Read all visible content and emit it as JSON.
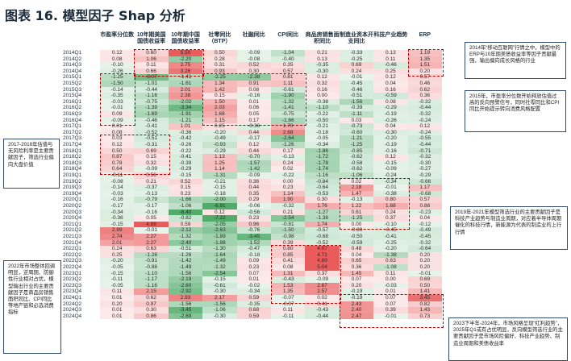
{
  "title": "图表 16. 模型因子 Shap 分析",
  "columns": [
    "市盈率分位数",
    "10年期美国国债收益率",
    "10年期中国国债收益率",
    "社零同比（BTP）",
    "社融同比",
    "CPI同比",
    "商品房销售面积同比",
    "制造业资本开支同比",
    "科技产业趋势",
    "ERP"
  ],
  "rows": [
    {
      "label": "2014Q1",
      "values": [
        0.12,
        0.6,
        5.5,
        0.5,
        -0.09,
        -1.04,
        0.21,
        -0.33,
        0.13,
        1.19
      ]
    },
    {
      "label": "2014Q2",
      "values": [
        0.08,
        1.06,
        -2.2,
        0.28,
        -0.08,
        -0.4,
        0.13,
        -0.25,
        0.11,
        1.35
      ]
    },
    {
      "label": "2014Q3",
      "values": [
        -0.1,
        0.11,
        2.75,
        0.31,
        0.52,
        0.35,
        -0.35,
        0.69,
        -0.46,
        1.51
      ]
    },
    {
      "label": "2014Q4",
      "values": [
        -0.26,
        0.66,
        3.26,
        0.93,
        0.3,
        0.57,
        -0.3,
        0.24,
        0.25,
        0.2
      ]
    },
    {
      "label": "2015Q1",
      "values": [
        -1.25,
        -3.07,
        -1.41,
        -2.25,
        -2.38,
        0.81,
        0.12,
        -0.01,
        0.12,
        0.57
      ]
    },
    {
      "label": "2015Q2",
      "values": [
        -1.5,
        -1.01,
        -1.61,
        1.34,
        0.91,
        1.11,
        0.32,
        -0.45,
        0.04,
        0.46
      ]
    },
    {
      "label": "2015Q3",
      "values": [
        -0.14,
        -0.44,
        2.01,
        1.42,
        0.08,
        -0.61,
        0.16,
        -0.46,
        0.16,
        0.62
      ]
    },
    {
      "label": "2015Q4",
      "values": [
        -0.35,
        -1.16,
        2.38,
        0.15,
        -0.16,
        -1.9,
        0.0,
        -0.51,
        -0.59,
        0.36
      ]
    },
    {
      "label": "2016Q1",
      "values": [
        -0.03,
        -0.75,
        -2.02,
        1.5,
        0.01,
        -1.32,
        -0.38,
        -1.56,
        0.08,
        -0.32
      ]
    },
    {
      "label": "2016Q2",
      "values": [
        -0.01,
        -1.39,
        -3.34,
        2.03,
        0.06,
        -1.41,
        -1.1,
        -0.39,
        -0.29,
        -0.44
      ]
    },
    {
      "label": "2016Q3",
      "values": [
        0.09,
        -1.69,
        -1.91,
        1.68,
        0.05,
        -0.75,
        -0.22,
        -1.11,
        -0.19,
        -0.32
      ]
    },
    {
      "label": "2016Q4",
      "values": [
        -0.09,
        -0.46,
        -1.21,
        1.15,
        0.17,
        -1.66,
        -0.5,
        0.03,
        -0.26,
        -0.24
      ]
    },
    {
      "label": "2017Q1",
      "values": [
        0.01,
        -0.41,
        1.01,
        0.25,
        -0.36,
        1.7,
        -0.21,
        -0.73,
        0.04,
        0.12
      ]
    },
    {
      "label": "2017Q2",
      "values": [
        0.08,
        -0.52,
        -0.36,
        -0.2,
        0.44,
        2.68,
        -0.18,
        -0.6,
        -0.3,
        -0.24
      ]
    },
    {
      "label": "2017Q3",
      "values": [
        0.03,
        -0.51,
        -0.42,
        -0.49,
        -0.17,
        -2.64,
        -0.05,
        -1.21,
        -0.2,
        -0.55
      ]
    },
    {
      "label": "2017Q4",
      "values": [
        0.12,
        -0.31,
        -0.26,
        -0.93,
        0.12,
        -1.26,
        -0.34,
        -1.25,
        -0.19,
        -0.44
      ]
    },
    {
      "label": "2018Q1",
      "values": [
        0.5,
        0.69,
        -0.22,
        -0.29,
        0.44,
        0.17,
        -1.86,
        -0.85,
        -0.16,
        -0.71
      ]
    },
    {
      "label": "2018Q2",
      "values": [
        0.87,
        0.15,
        -0.41,
        1.13,
        -0.7,
        -0.13,
        -1.72,
        -0.62,
        0.12,
        -0.32
      ]
    },
    {
      "label": "2018Q3",
      "values": [
        0.78,
        0.32,
        -0.39,
        1.25,
        -1.57,
        0.24,
        -1.78,
        -0.58,
        -0.15,
        -0.3
      ]
    },
    {
      "label": "2018Q4",
      "values": [
        0.64,
        -0.09,
        -0.29,
        1.14,
        -1.42,
        0.02,
        -1.74,
        -0.62,
        -0.09,
        -0.27
      ]
    },
    {
      "label": "2019Q1",
      "values": [
        -0.11,
        0.56,
        -0.15,
        -1.31,
        -0.09,
        -0.22,
        -1.16,
        -1.06,
        -0.24,
        -0.29
      ]
    },
    {
      "label": "2019Q2",
      "values": [
        -0.08,
        0.21,
        0.52,
        -0.21,
        0.36,
        0.0,
        -0.84,
        0.02,
        -0.34,
        -0.66
      ]
    },
    {
      "label": "2019Q3",
      "values": [
        -0.14,
        -0.37,
        0.15,
        -0.15,
        0.44,
        0.23,
        -0.64,
        2.18,
        -0.01,
        1.17
      ]
    },
    {
      "label": "2019Q4",
      "values": [
        -0.03,
        -0.13,
        0.23,
        -0.18,
        0.35,
        1.14,
        -0.53,
        1.47,
        -0.38,
        -0.68
      ]
    },
    {
      "label": "2020Q1",
      "values": [
        -0.16,
        -0.79,
        -1.66,
        -2.0,
        0.29,
        1.9,
        0.3,
        -0.13,
        0.8,
        0.57
      ]
    },
    {
      "label": "2020Q2",
      "values": [
        -0.17,
        -0.17,
        -1.06,
        -6.91,
        -0.06,
        -0.32,
        1.76,
        1.22,
        1.68,
        0.88
      ]
    },
    {
      "label": "2020Q3",
      "values": [
        -0.34,
        -0.16,
        -6.4,
        0.12,
        -0.56,
        0.21,
        -1.27,
        0.61,
        0.24,
        -0.23
      ]
    },
    {
      "label": "2020Q4",
      "values": [
        -0.36,
        0.05,
        -0.82,
        -7.22,
        0.23,
        -2.54,
        -1.38,
        -1.25,
        0.37,
        0.04
      ]
    },
    {
      "label": "2021Q1",
      "values": [
        -0.15,
        4.88,
        0.59,
        -2.05,
        0.96,
        -0.81,
        1.74,
        0.0,
        -0.1,
        -0.12
      ]
    },
    {
      "label": "2021Q2",
      "values": [
        2.99,
        -0.01,
        -2.12,
        -2.63,
        -0.76,
        -1.5,
        -0.57,
        -0.3,
        -0.45,
        -0.49
      ]
    },
    {
      "label": "2021Q3",
      "values": [
        2.74,
        2.27,
        -1.32,
        -1.89,
        -3.45,
        -0.98,
        -0.68,
        -0.5,
        -0.41,
        -0.45
      ]
    },
    {
      "label": "2021Q4",
      "values": [
        2.01,
        2.27,
        -2.4,
        -1.88,
        -1.52,
        0.39,
        -0.52,
        -0.59,
        -0.25,
        -0.32
      ]
    },
    {
      "label": "2022Q1",
      "values": [
        0.24,
        0.63,
        -0.51,
        -1.3,
        -0.47,
        0.8,
        4.07,
        0.48,
        -0.2,
        -0.64
      ]
    },
    {
      "label": "2022Q2",
      "values": [
        0.25,
        -1.28,
        -1.26,
        -1.64,
        -0.18,
        0.85,
        4.71,
        0.04,
        -1.38,
        0.2
      ]
    },
    {
      "label": "2022Q3",
      "values": [
        -0.2,
        -0.91,
        -1.42,
        -1.49,
        0.09,
        0.41,
        4.89,
        0.65,
        0.63,
        0.2
      ]
    },
    {
      "label": "2022Q4",
      "values": [
        -0.05,
        -0.88,
        -1.49,
        -1.32,
        0.23,
        0.08,
        5.04,
        0.36,
        -1.08,
        0.2
      ]
    },
    {
      "label": "2023Q1",
      "values": [
        -0.15,
        -1.1,
        -1.56,
        -2.54,
        0.07,
        1.31,
        0.37,
        1.45,
        0.11,
        -0.01
      ]
    },
    {
      "label": "2023Q2",
      "values": [
        -0.11,
        -1.17,
        -2.19,
        -0.15,
        0.01,
        -0.43,
        -0.09,
        0.07,
        0.0,
        0.69
      ]
    },
    {
      "label": "2023Q3",
      "values": [
        -0.05,
        -1.16,
        -2.6,
        -0.61,
        -0.02,
        1.53,
        2.67,
        0.2,
        -0.03,
        0.5
      ]
    },
    {
      "label": "2023Q4",
      "values": [
        0.11,
        2.15,
        -2.92,
        -0.3,
        -0.34,
        1.35,
        2.57,
        -0.19,
        0.01,
        1.41
      ]
    },
    {
      "label": "2024Q1",
      "values": [
        0.01,
        0.62,
        2.93,
        2.17,
        0.59,
        -0.07,
        0.02,
        -0.19,
        0.07,
        3.45
      ]
    },
    {
      "label": "2024Q2",
      "values": [
        0.2,
        0.97,
        -1.56,
        -1.56,
        -0.35,
        -0.07,
        0.41,
        2.43,
        0.07,
        0.82
      ]
    },
    {
      "label": "2024Q3",
      "values": [
        0.01,
        0.3,
        -3.45,
        -1.06,
        0.68,
        0.11,
        -0.43,
        2.4,
        0.39,
        1.43
      ]
    },
    {
      "label": "2024Q4",
      "values": [
        0.01,
        0.86,
        -2.69,
        -0.3,
        0.59,
        -0.11,
        -0.44,
        2.47,
        -0.01,
        0.73
      ]
    }
  ],
  "notes": [
    "2014年“移动互联网”行情之中，模型中的ERP与10年期美债收益率等因子贡献最强，输出偏向成长风格的行业",
    "2015年，市盈率分位数开始释放估值过高的反向预警信号，同时社零同比和CPI同比开始提示转向消费风格配置",
    "2017-2018年估值与无风险利率是主要贡献因子，筛选行业偏向大盘价值",
    "2019年-2021年模型筛选行业的主要贡献因子是科技产业趋势与制造业周期，对应着半导体周期催化的科技行情，新能源为代表的制造业的上行行情",
    "2022年市场整体回调明显，逆周期、防御性行业相对占优，模型输出行业的主要贡献因子是商品房销售面积同比、CPI同比等地产链和必选消费指标",
    "2023下半年-2024年，市场风格呈现“红利趋势”，2025年Q1或有占优明显，反向模型筛选行业的主要贡献因子是市场风险偏好、科技产业趋势、制造业周期和美债收益率"
  ],
  "colors": {
    "red": "#e84a4a",
    "green": "#3ea35a",
    "dash": "#c00000"
  }
}
